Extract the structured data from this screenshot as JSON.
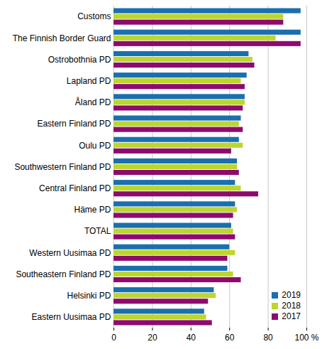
{
  "chart_data": {
    "type": "bar",
    "orientation": "horizontal",
    "grid": true,
    "legend": "bottom right",
    "categories": [
      "Customs",
      "The Finnish Border Guard",
      "Ostrobothnia PD",
      "Lapland PD",
      "Åland PD",
      "Eastern Finland PD",
      "Oulu PD",
      "Southwestern Finland PD",
      "Central Finland PD",
      "Häme PD",
      "TOTAL",
      "Western Uusimaa PD",
      "Southeastern Finland PD",
      "Helsinki PD",
      "Eastern Uusimaa PD"
    ],
    "series": [
      {
        "name": "2019",
        "color": "#1a6fae",
        "values": [
          97,
          97,
          70,
          69,
          68,
          66,
          65,
          64,
          63,
          63,
          61,
          60,
          59,
          52,
          47
        ]
      },
      {
        "name": "2018",
        "color": "#bcd62e",
        "values": [
          88,
          84,
          72,
          66,
          68,
          65,
          67,
          64,
          66,
          64,
          62,
          63,
          62,
          53,
          48
        ]
      },
      {
        "name": "2017",
        "color": "#8e0a6e",
        "values": [
          88,
          97,
          73,
          68,
          67,
          67,
          61,
          65,
          75,
          62,
          63,
          59,
          66,
          49,
          51
        ]
      }
    ],
    "xlim": [
      0,
      100
    ],
    "xticks": [
      0,
      20,
      40,
      60,
      80,
      {
        "value": 100,
        "label": "100 %"
      }
    ]
  }
}
